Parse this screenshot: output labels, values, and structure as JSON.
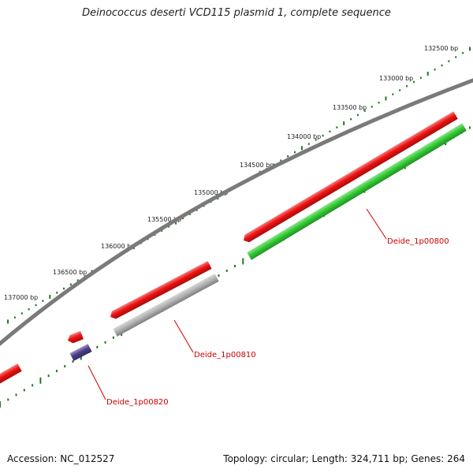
{
  "title": "Deinococcus deserti VCD115 plasmid 1, complete sequence",
  "footer": {
    "accession": "Accession: NC_012527",
    "summary": "Topology: circular; Length: 324,711 bp; Genes: 264"
  },
  "colors": {
    "backbone": "#7a7a7a",
    "gene_forward": "#ee1111",
    "cds": "#33cc33",
    "misc_feature": "#b4b4b4",
    "other_feature": "#4b3f8c",
    "tick": "#1e7a1e",
    "label": "#cc0000"
  },
  "scale_labels": [
    "132500 bp",
    "133000 bp",
    "133500 bp",
    "134000 bp",
    "134500 bp",
    "135000 bp",
    "135500 bp",
    "136000 bp",
    "136500 bp",
    "137000 bp"
  ],
  "features": [
    {
      "name": "gene-1p00800",
      "type": "gene_forward",
      "arrow": true
    },
    {
      "name": "cds-1p00800",
      "type": "cds",
      "arrow": false
    },
    {
      "name": "gene-1p00810",
      "type": "gene_forward",
      "arrow": true
    },
    {
      "name": "misc-1p00810",
      "type": "misc_feature",
      "arrow": false
    },
    {
      "name": "gene-1p00820",
      "type": "gene_forward",
      "arrow": true
    },
    {
      "name": "other-1p00820",
      "type": "other_feature",
      "arrow": false
    },
    {
      "name": "gene-partial",
      "type": "gene_forward",
      "arrow": false
    }
  ],
  "gene_labels": [
    "Deide_1p00800",
    "Deide_1p00810",
    "Deide_1p00820"
  ]
}
